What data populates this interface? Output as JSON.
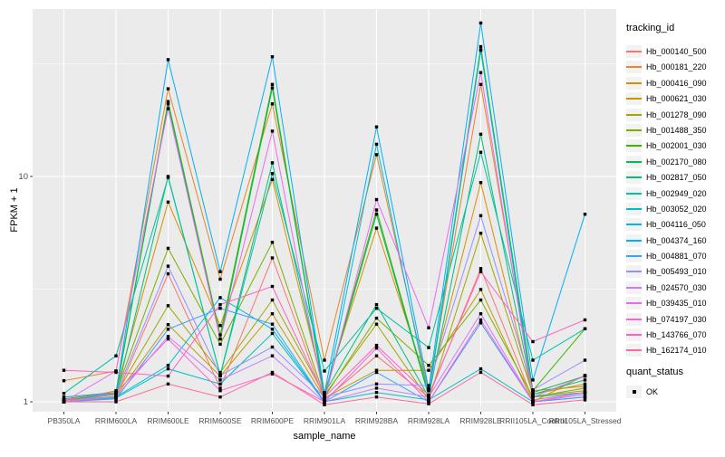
{
  "figure": {
    "y_axis_title": "FPKM + 1",
    "x_axis_title": "sample_name",
    "legend": {
      "tracking_title": "tracking_id",
      "quant_title": "quant_status",
      "quant_items": [
        {
          "label": "OK",
          "marker": "black-square"
        }
      ]
    }
  },
  "colors": {
    "panel_bg": "#EBEBEB",
    "grid": "#FFFFFF",
    "tick_label": "#4D4D4D",
    "axis_tick": "#333333",
    "legend_key_bg": "#F2F2F2",
    "point": "#000000"
  },
  "chart_data": {
    "type": "line",
    "title": "",
    "xlabel": "sample_name",
    "ylabel": "FPKM + 1",
    "y_scale": "log10",
    "ylim": [
      0.9,
      55
    ],
    "y_ticks": [
      10,
      1
    ],
    "y_minor_ticks": [
      3.162,
      31.62
    ],
    "grid": true,
    "legend_position": "right",
    "point_marker": "square",
    "quant_status_label": "OK",
    "x": [
      "PB350LA",
      "RRIM600LA",
      "RRIM600LE",
      "RRIM600SE",
      "RRIM600PE",
      "RRIM901LA",
      "RRIM928BA",
      "RRIM928LA",
      "RRIM928LE",
      "RRII105LA_Control",
      "RRII105LA_Stressed"
    ],
    "series": [
      {
        "name": "Hb_000140_500",
        "color": "#F8766D",
        "values": [
          1.02,
          1.05,
          3.7,
          1.15,
          4.35,
          1.02,
          1.6,
          1.05,
          3.9,
          1.02,
          1.1
        ]
      },
      {
        "name": "Hb_000181_220",
        "color": "#E88526",
        "values": [
          1.24,
          1.37,
          24.5,
          3.5,
          21.0,
          1.53,
          12.5,
          1.12,
          25.6,
          1.12,
          1.17
        ]
      },
      {
        "name": "Hb_000416_090",
        "color": "#D89000",
        "values": [
          1.0,
          1.12,
          7.7,
          2.18,
          9.7,
          1.1,
          5.9,
          1.14,
          9.4,
          1.06,
          1.12
        ]
      },
      {
        "name": "Hb_000621_030",
        "color": "#C09B00",
        "values": [
          1.0,
          1.06,
          2.2,
          1.3,
          2.46,
          1.04,
          1.38,
          1.38,
          3.15,
          1.0,
          1.31
        ]
      },
      {
        "name": "Hb_001278_090",
        "color": "#A3A500",
        "values": [
          1.0,
          1.08,
          2.67,
          1.35,
          2.83,
          1.07,
          2.21,
          1.02,
          5.6,
          1.08,
          1.2
        ]
      },
      {
        "name": "Hb_001488_350",
        "color": "#7CAE00",
        "values": [
          1.0,
          1.1,
          4.8,
          1.8,
          5.1,
          1.05,
          2.35,
          1.45,
          2.83,
          1.05,
          1.15
        ]
      },
      {
        "name": "Hb_002001_030",
        "color": "#39B600",
        "values": [
          1.03,
          1.1,
          21.5,
          1.98,
          25.6,
          1.06,
          7.1,
          1.07,
          37.7,
          1.12,
          2.11
        ]
      },
      {
        "name": "Hb_002170_080",
        "color": "#00BB4E",
        "values": [
          1.02,
          1.09,
          21.0,
          1.9,
          24.7,
          1.05,
          6.8,
          1.06,
          36.3,
          1.1,
          1.3
        ]
      },
      {
        "name": "Hb_002817_050",
        "color": "#00BF7D",
        "values": [
          1.0,
          1.05,
          10.0,
          1.31,
          11.5,
          1.09,
          2.7,
          1.05,
          15.4,
          1.08,
          1.25
        ]
      },
      {
        "name": "Hb_002949_020",
        "color": "#00C1A3",
        "values": [
          1.09,
          1.6,
          9.9,
          1.31,
          10.3,
          1.37,
          2.6,
          1.74,
          12.8,
          1.53,
          2.11
        ]
      },
      {
        "name": "Hb_003052_020",
        "color": "#00BFC4",
        "values": [
          1.0,
          1.04,
          1.4,
          1.2,
          2.01,
          1.0,
          1.1,
          1.02,
          1.4,
          1.0,
          1.05
        ]
      },
      {
        "name": "Hb_004116_050",
        "color": "#00BAE0",
        "values": [
          1.0,
          1.05,
          1.45,
          2.9,
          2.1,
          1.0,
          13.9,
          1.05,
          36.5,
          1.05,
          1.1
        ]
      },
      {
        "name": "Hb_004374_160",
        "color": "#00B0F6",
        "values": [
          1.05,
          1.1,
          33.0,
          3.78,
          34.0,
          1.09,
          16.6,
          1.14,
          48.0,
          1.25,
          6.8
        ]
      },
      {
        "name": "Hb_004881_070",
        "color": "#35A2FF",
        "values": [
          1.0,
          1.03,
          2.1,
          2.6,
          2.21,
          1.0,
          1.35,
          1.0,
          2.24,
          1.0,
          1.05
        ]
      },
      {
        "name": "Hb_005493_010",
        "color": "#9590FF",
        "values": [
          1.0,
          1.08,
          4.0,
          1.31,
          1.75,
          1.05,
          1.2,
          1.18,
          6.7,
          1.13,
          1.53
        ]
      },
      {
        "name": "Hb_024570_030",
        "color": "#C77CFF",
        "values": [
          1.0,
          1.05,
          1.95,
          1.25,
          1.6,
          1.0,
          1.15,
          1.05,
          2.46,
          1.0,
          1.1
        ]
      },
      {
        "name": "Hb_039435_010",
        "color": "#E76BF3",
        "values": [
          1.0,
          1.37,
          20.0,
          1.9,
          15.9,
          1.02,
          7.9,
          2.13,
          28.9,
          1.05,
          1.3
        ]
      },
      {
        "name": "Hb_074197_030",
        "color": "#FA62DB",
        "values": [
          1.02,
          1.1,
          1.9,
          1.12,
          1.33,
          1.0,
          1.73,
          1.0,
          2.31,
          1.0,
          1.08
        ]
      },
      {
        "name": "Hb_143766_070",
        "color": "#FF61C3",
        "values": [
          1.38,
          1.35,
          1.3,
          2.7,
          3.25,
          1.05,
          1.78,
          1.07,
          3.78,
          1.85,
          2.31
        ]
      },
      {
        "name": "Hb_162174_010",
        "color": "#FF6A98",
        "values": [
          1.0,
          1.0,
          1.2,
          1.05,
          1.35,
          0.97,
          1.05,
          0.98,
          1.35,
          0.97,
          1.02
        ]
      }
    ]
  }
}
